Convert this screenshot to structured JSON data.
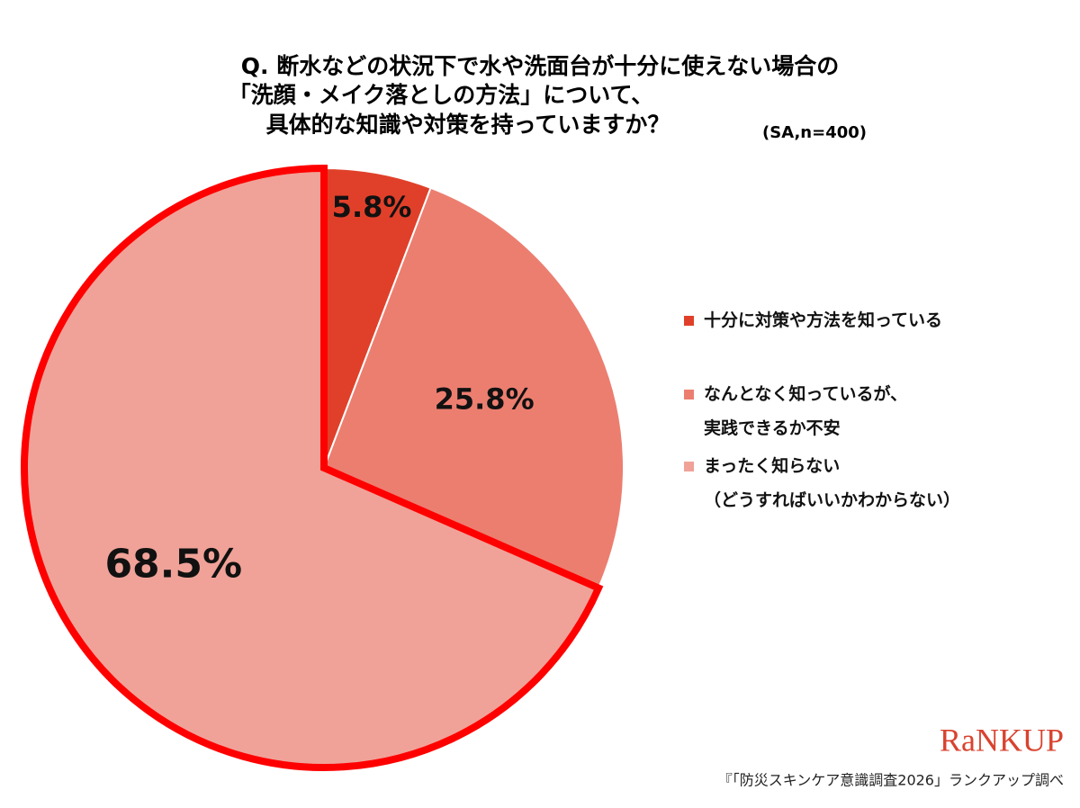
{
  "chart_data": {
    "type": "pie",
    "title": [
      "Q. 断水などの状況下で水や洗面台が十分に使えない場合の",
      "「洗顔・メイク落としの方法」について、",
      "具体的な知識や対策を持っていますか？"
    ],
    "subtitle": "(SA,n=400)",
    "categories": [
      "十分に対策や方法を知っている",
      "なんとなく知っているが、\n実践できるか不安",
      "まったく知らない\n（どうすればいいかわからない）"
    ],
    "values": [
      5.8,
      25.8,
      68.5
    ],
    "value_labels": [
      "5.8%",
      "25.8%",
      "68.5%"
    ],
    "colors": [
      "#e0402a",
      "#ec7e70",
      "#f0a298"
    ],
    "highlight_index": 2,
    "highlight_color": "#ff0000"
  },
  "logo": "RaNKUP",
  "source": "『「防災スキンケア意識調査2026」ランクアップ調べ"
}
